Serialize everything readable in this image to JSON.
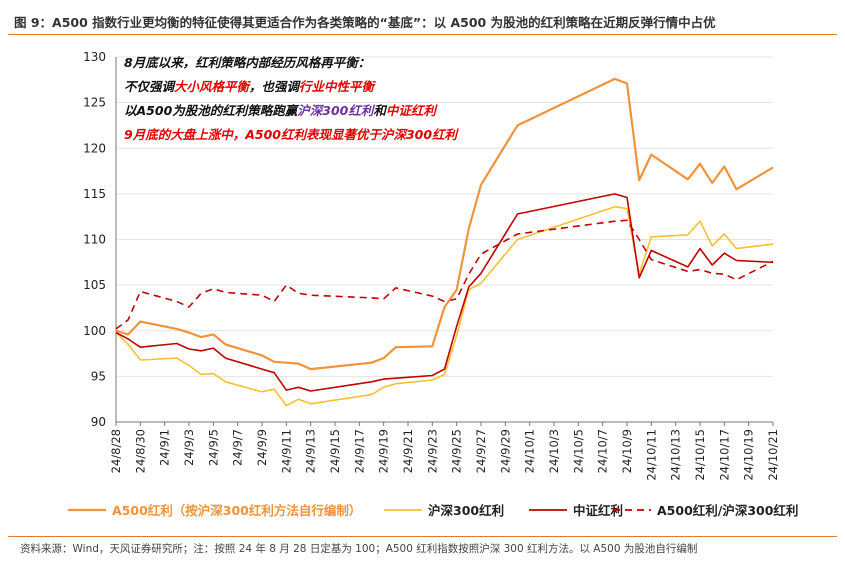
{
  "title": "图 9：A500 指数行业更均衡的特征使得其更适合作为各类策略的“基底”：以 A500 为股池的红利策略在近期反弹行情中占优",
  "source": "资料来源：Wind，天风证券研究所；注：按照 24 年 8 月 28 日定基为 100；A500 红利指数按照沪深 300 红利方法。以 A500 为股池自行编制",
  "annotation": {
    "line1": "8月底以来，红利策略内部经历风格再平衡：",
    "line2_a": "不仅强调",
    "line2_b": "大小风格平衡",
    "line2_c": "，也强调",
    "line2_d": "行业中性平衡",
    "line3_a": "以A500为股池的红利策略跑赢",
    "line3_b": "沪深300红利",
    "line3_c": "和",
    "line3_d": "中证红利",
    "line4": "9月底的大盘上涨中，A500红利表现显著优于沪深300红利"
  },
  "colors": {
    "accent": "#e07a2a",
    "a500": "#f0933a",
    "hs300": "#f7c033",
    "zz": "#c00000",
    "ratio": "#c00000",
    "ann_red": "#e00000",
    "ann_purple": "#7030a0"
  },
  "chart_data": {
    "type": "line",
    "ylim": [
      90,
      130
    ],
    "yticks": [
      "90",
      "95",
      "100",
      "105",
      "110",
      "115",
      "120",
      "125",
      "130"
    ],
    "xticks": [
      "24/8/28",
      "24/8/30",
      "24/9/1",
      "24/9/3",
      "24/9/5",
      "24/9/7",
      "24/9/9",
      "24/9/11",
      "24/9/13",
      "24/9/15",
      "24/9/17",
      "24/9/19",
      "24/9/21",
      "24/9/23",
      "24/9/25",
      "24/9/27",
      "24/9/29",
      "24/10/1",
      "24/10/3",
      "24/10/5",
      "24/10/7",
      "24/10/9",
      "24/10/11",
      "24/10/13",
      "24/10/15",
      "24/10/17",
      "24/10/19",
      "24/10/21"
    ],
    "x_start": "2024-08-28",
    "x_end": "2024-10-21",
    "series": [
      {
        "name": "A500红利（按沪深300红利方法自行编制）",
        "style": "solid",
        "color": "#f0933a",
        "width": 2.2,
        "x": [
          "2024-08-28",
          "2024-08-29",
          "2024-08-30",
          "2024-09-02",
          "2024-09-03",
          "2024-09-04",
          "2024-09-05",
          "2024-09-06",
          "2024-09-09",
          "2024-09-10",
          "2024-09-11",
          "2024-09-12",
          "2024-09-13",
          "2024-09-18",
          "2024-09-19",
          "2024-09-20",
          "2024-09-23",
          "2024-09-24",
          "2024-09-25",
          "2024-09-26",
          "2024-09-27",
          "2024-09-30",
          "2024-10-08",
          "2024-10-09",
          "2024-10-10",
          "2024-10-11",
          "2024-10-14",
          "2024-10-15",
          "2024-10-16",
          "2024-10-17",
          "2024-10-18",
          "2024-10-21"
        ],
        "y": [
          100.0,
          99.6,
          101.0,
          100.2,
          99.8,
          99.3,
          99.6,
          98.5,
          97.3,
          96.6,
          96.5,
          96.4,
          95.8,
          96.5,
          97.0,
          98.2,
          98.3,
          102.6,
          104.5,
          111.2,
          116.0,
          122.5,
          127.6,
          127.1,
          116.5,
          119.3,
          116.6,
          118.3,
          116.2,
          118.0,
          115.5,
          117.9
        ]
      },
      {
        "name": "沪深300红利",
        "style": "solid",
        "color": "#f7c033",
        "width": 1.6,
        "x": [
          "2024-08-28",
          "2024-08-29",
          "2024-08-30",
          "2024-09-02",
          "2024-09-03",
          "2024-09-04",
          "2024-09-05",
          "2024-09-06",
          "2024-09-09",
          "2024-09-10",
          "2024-09-11",
          "2024-09-12",
          "2024-09-13",
          "2024-09-18",
          "2024-09-19",
          "2024-09-20",
          "2024-09-23",
          "2024-09-24",
          "2024-09-25",
          "2024-09-26",
          "2024-09-27",
          "2024-09-30",
          "2024-10-08",
          "2024-10-09",
          "2024-10-10",
          "2024-10-11",
          "2024-10-14",
          "2024-10-15",
          "2024-10-16",
          "2024-10-17",
          "2024-10-18",
          "2024-10-21"
        ],
        "y": [
          99.8,
          98.5,
          96.8,
          97.0,
          96.2,
          95.2,
          95.3,
          94.4,
          93.3,
          93.6,
          91.8,
          92.5,
          92.0,
          93.0,
          93.8,
          94.2,
          94.6,
          95.2,
          99.5,
          104.5,
          105.2,
          110.0,
          113.6,
          113.4,
          106.2,
          110.3,
          110.5,
          112.0,
          109.3,
          110.6,
          109.0,
          109.5
        ]
      },
      {
        "name": "中证红利",
        "style": "solid",
        "color": "#c00000",
        "width": 1.6,
        "x": [
          "2024-08-28",
          "2024-08-29",
          "2024-08-30",
          "2024-09-02",
          "2024-09-03",
          "2024-09-04",
          "2024-09-05",
          "2024-09-06",
          "2024-09-09",
          "2024-09-10",
          "2024-09-11",
          "2024-09-12",
          "2024-09-13",
          "2024-09-18",
          "2024-09-19",
          "2024-09-20",
          "2024-09-23",
          "2024-09-24",
          "2024-09-25",
          "2024-09-26",
          "2024-09-27",
          "2024-09-30",
          "2024-10-08",
          "2024-10-09",
          "2024-10-10",
          "2024-10-11",
          "2024-10-14",
          "2024-10-15",
          "2024-10-16",
          "2024-10-17",
          "2024-10-18",
          "2024-10-21"
        ],
        "y": [
          99.8,
          99.1,
          98.2,
          98.6,
          98.0,
          97.8,
          98.1,
          97.0,
          95.8,
          95.4,
          93.5,
          93.8,
          93.4,
          94.4,
          94.7,
          94.8,
          95.1,
          95.8,
          100.5,
          104.8,
          106.3,
          112.8,
          115.0,
          114.6,
          105.8,
          108.8,
          107.0,
          109.0,
          107.2,
          108.5,
          107.7,
          107.5
        ]
      },
      {
        "name": "A500红利/沪深300红利",
        "style": "dashed",
        "color": "#c00000",
        "width": 1.6,
        "x": [
          "2024-08-28",
          "2024-08-29",
          "2024-08-30",
          "2024-09-02",
          "2024-09-03",
          "2024-09-04",
          "2024-09-05",
          "2024-09-06",
          "2024-09-09",
          "2024-09-10",
          "2024-09-11",
          "2024-09-12",
          "2024-09-13",
          "2024-09-18",
          "2024-09-19",
          "2024-09-20",
          "2024-09-23",
          "2024-09-24",
          "2024-09-25",
          "2024-09-26",
          "2024-09-27",
          "2024-09-30",
          "2024-10-08",
          "2024-10-09",
          "2024-10-10",
          "2024-10-11",
          "2024-10-14",
          "2024-10-15",
          "2024-10-16",
          "2024-10-17",
          "2024-10-18",
          "2024-10-21"
        ],
        "y": [
          100.2,
          101.2,
          104.3,
          103.2,
          102.6,
          104.1,
          104.6,
          104.2,
          103.9,
          103.2,
          105.0,
          104.1,
          103.9,
          103.6,
          103.5,
          104.7,
          103.8,
          103.2,
          103.5,
          106.2,
          108.4,
          110.6,
          112.0,
          112.1,
          110.0,
          107.8,
          106.5,
          106.7,
          106.3,
          106.2,
          105.6,
          107.6
        ]
      }
    ],
    "legend_position": "bottom"
  }
}
